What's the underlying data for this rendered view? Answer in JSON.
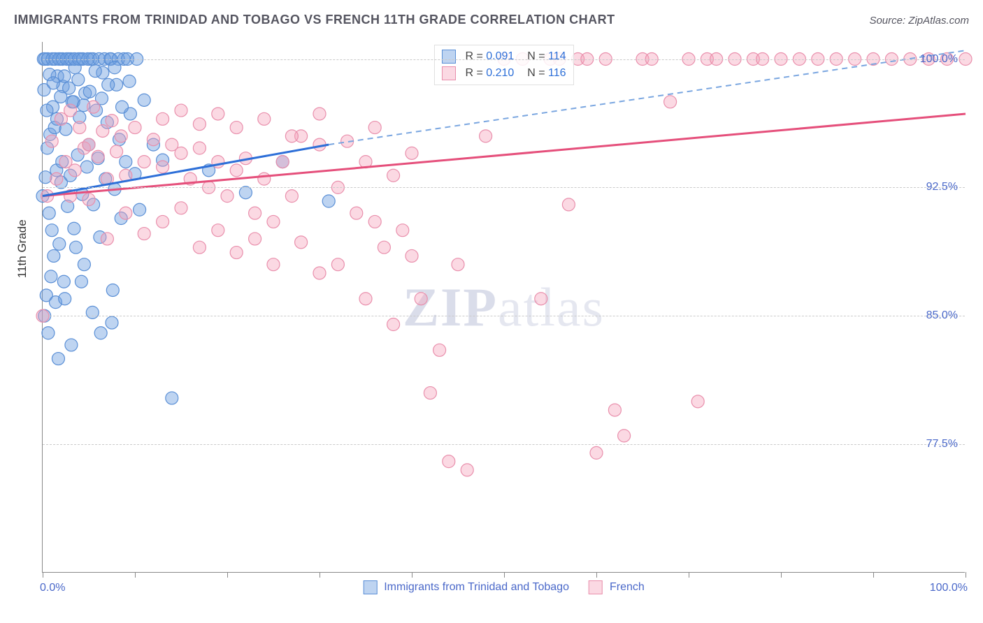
{
  "title": "IMMIGRANTS FROM TRINIDAD AND TOBAGO VS FRENCH 11TH GRADE CORRELATION CHART",
  "source": "Source: ZipAtlas.com",
  "watermark": {
    "prefix": "ZIP",
    "suffix": "atlas"
  },
  "yaxis_title": "11th Grade",
  "xlim": [
    0,
    100
  ],
  "ylim": [
    70,
    101
  ],
  "x_ticks": [
    0,
    10,
    20,
    30,
    40,
    50,
    60,
    70,
    80,
    90,
    100
  ],
  "y_gridlines": [
    77.5,
    85.0,
    92.5,
    100.0
  ],
  "y_tick_labels": [
    "77.5%",
    "85.0%",
    "92.5%",
    "100.0%"
  ],
  "x_axis_labels": {
    "left": "0.0%",
    "right": "100.0%"
  },
  "colors": {
    "blue_fill": "rgba(110,160,225,0.45)",
    "blue_stroke": "#5a8fd6",
    "pink_fill": "rgba(245,160,185,0.40)",
    "pink_stroke": "#e98fac",
    "blue_line": "#2d6fd8",
    "blue_dash": "#7aa6e0",
    "pink_line": "#e54f7b",
    "grid": "#cacaca",
    "axis": "#888888",
    "tick_text": "#4a68c9"
  },
  "marker_radius": 9,
  "series": [
    {
      "name": "Immigrants from Trinidad and Tobago",
      "key": "trinidad",
      "R": "0.091",
      "N": "114",
      "trend_solid": {
        "x1": 0,
        "y1": 92.0,
        "x2": 31,
        "y2": 95.0
      },
      "trend_dashed": {
        "x1": 31,
        "y1": 95.0,
        "x2": 100,
        "y2": 100.5
      },
      "points": [
        [
          0.0,
          92.0
        ],
        [
          0.3,
          93.1
        ],
        [
          0.5,
          94.8
        ],
        [
          0.7,
          91.0
        ],
        [
          0.8,
          95.6
        ],
        [
          1.0,
          90.0
        ],
        [
          1.1,
          97.2
        ],
        [
          1.2,
          88.5
        ],
        [
          1.3,
          96.0
        ],
        [
          1.5,
          93.5
        ],
        [
          1.6,
          99.0
        ],
        [
          1.8,
          89.2
        ],
        [
          1.9,
          100.0
        ],
        [
          2.0,
          92.8
        ],
        [
          2.1,
          94.0
        ],
        [
          2.2,
          98.4
        ],
        [
          2.3,
          87.0
        ],
        [
          2.5,
          95.9
        ],
        [
          2.7,
          91.4
        ],
        [
          2.8,
          100.0
        ],
        [
          3.0,
          93.2
        ],
        [
          3.2,
          97.5
        ],
        [
          3.4,
          90.1
        ],
        [
          3.5,
          99.5
        ],
        [
          3.6,
          89.0
        ],
        [
          3.8,
          94.4
        ],
        [
          4.0,
          96.6
        ],
        [
          4.1,
          100.0
        ],
        [
          4.3,
          92.1
        ],
        [
          4.5,
          88.0
        ],
        [
          4.6,
          98.0
        ],
        [
          4.8,
          93.7
        ],
        [
          5.0,
          95.0
        ],
        [
          5.2,
          100.0
        ],
        [
          5.5,
          91.5
        ],
        [
          5.8,
          97.0
        ],
        [
          6.0,
          94.2
        ],
        [
          6.2,
          89.6
        ],
        [
          6.5,
          99.2
        ],
        [
          6.8,
          93.0
        ],
        [
          7.0,
          96.3
        ],
        [
          7.3,
          100.0
        ],
        [
          7.5,
          84.6
        ],
        [
          7.8,
          92.4
        ],
        [
          8.0,
          98.5
        ],
        [
          8.3,
          95.3
        ],
        [
          8.5,
          90.7
        ],
        [
          8.8,
          100.0
        ],
        [
          9.0,
          94.0
        ],
        [
          9.5,
          96.8
        ],
        [
          10.0,
          93.3
        ],
        [
          10.5,
          91.2
        ],
        [
          11.0,
          97.6
        ],
        [
          12.0,
          95.0
        ],
        [
          13.0,
          94.1
        ],
        [
          14.0,
          80.2
        ],
        [
          18.0,
          93.5
        ],
        [
          22.0,
          92.2
        ],
        [
          26.0,
          94.0
        ],
        [
          31.0,
          91.7
        ],
        [
          0.2,
          85.0
        ],
        [
          0.4,
          86.2
        ],
        [
          0.6,
          84.0
        ],
        [
          0.9,
          87.3
        ],
        [
          1.4,
          85.8
        ],
        [
          1.7,
          82.5
        ],
        [
          2.4,
          86.0
        ],
        [
          3.1,
          83.3
        ],
        [
          4.2,
          87.0
        ],
        [
          5.4,
          85.2
        ],
        [
          6.3,
          84.0
        ],
        [
          7.6,
          86.5
        ],
        [
          0.1,
          100.0
        ],
        [
          0.25,
          100.0
        ],
        [
          0.55,
          100.0
        ],
        [
          1.05,
          100.0
        ],
        [
          1.35,
          100.0
        ],
        [
          1.75,
          100.0
        ],
        [
          2.15,
          100.0
        ],
        [
          2.6,
          100.0
        ],
        [
          3.05,
          100.0
        ],
        [
          3.45,
          100.0
        ],
        [
          3.9,
          100.0
        ],
        [
          4.35,
          100.0
        ],
        [
          4.9,
          100.0
        ],
        [
          5.45,
          100.0
        ],
        [
          6.1,
          100.0
        ],
        [
          6.7,
          100.0
        ],
        [
          7.4,
          100.0
        ],
        [
          8.2,
          100.0
        ],
        [
          9.2,
          100.0
        ],
        [
          10.2,
          100.0
        ],
        [
          0.15,
          98.2
        ],
        [
          0.45,
          97.0
        ],
        [
          0.75,
          99.1
        ],
        [
          1.15,
          98.6
        ],
        [
          1.55,
          96.5
        ],
        [
          1.95,
          97.8
        ],
        [
          2.35,
          99.0
        ],
        [
          2.85,
          98.3
        ],
        [
          3.35,
          97.5
        ],
        [
          3.85,
          98.8
        ],
        [
          4.45,
          97.3
        ],
        [
          5.1,
          98.1
        ],
        [
          5.7,
          99.3
        ],
        [
          6.4,
          97.7
        ],
        [
          7.1,
          98.5
        ],
        [
          7.8,
          99.5
        ],
        [
          8.6,
          97.2
        ],
        [
          9.4,
          98.7
        ]
      ]
    },
    {
      "name": "French",
      "key": "french",
      "R": "0.210",
      "N": "116",
      "trend_solid": {
        "x1": 0,
        "y1": 92.0,
        "x2": 100,
        "y2": 96.8
      },
      "points": [
        [
          0.0,
          85.0
        ],
        [
          0.5,
          92.0
        ],
        [
          1.0,
          95.2
        ],
        [
          1.5,
          93.0
        ],
        [
          2.0,
          96.5
        ],
        [
          2.5,
          94.0
        ],
        [
          3.0,
          97.0
        ],
        [
          3.5,
          93.5
        ],
        [
          4.0,
          96.0
        ],
        [
          4.5,
          94.8
        ],
        [
          5.0,
          95.0
        ],
        [
          5.5,
          97.2
        ],
        [
          6.0,
          94.3
        ],
        [
          6.5,
          95.8
        ],
        [
          7.0,
          93.0
        ],
        [
          7.5,
          96.4
        ],
        [
          8.0,
          94.6
        ],
        [
          8.5,
          95.5
        ],
        [
          9.0,
          93.2
        ],
        [
          10.0,
          96.0
        ],
        [
          11.0,
          94.0
        ],
        [
          12.0,
          95.3
        ],
        [
          13.0,
          93.7
        ],
        [
          14.0,
          95.0
        ],
        [
          15.0,
          94.5
        ],
        [
          16.0,
          93.0
        ],
        [
          17.0,
          94.8
        ],
        [
          18.0,
          92.5
        ],
        [
          19.0,
          94.0
        ],
        [
          20.0,
          92.0
        ],
        [
          21.0,
          93.5
        ],
        [
          22.0,
          94.2
        ],
        [
          23.0,
          91.0
        ],
        [
          24.0,
          93.0
        ],
        [
          25.0,
          90.5
        ],
        [
          26.0,
          94.0
        ],
        [
          27.0,
          92.0
        ],
        [
          28.0,
          95.5
        ],
        [
          30.0,
          95.0
        ],
        [
          32.0,
          88.0
        ],
        [
          34.0,
          91.0
        ],
        [
          35.0,
          86.0
        ],
        [
          36.0,
          90.5
        ],
        [
          37.0,
          89.0
        ],
        [
          38.0,
          84.5
        ],
        [
          39.0,
          90.0
        ],
        [
          40.0,
          88.5
        ],
        [
          41.0,
          86.0
        ],
        [
          42.0,
          80.5
        ],
        [
          43.0,
          83.0
        ],
        [
          44.0,
          76.5
        ],
        [
          45.0,
          88.0
        ],
        [
          46.0,
          76.0
        ],
        [
          48.0,
          95.5
        ],
        [
          50.0,
          100.0
        ],
        [
          52.0,
          100.0
        ],
        [
          54.0,
          86.0
        ],
        [
          55.0,
          100.0
        ],
        [
          56.0,
          100.0
        ],
        [
          57.0,
          91.5
        ],
        [
          58.0,
          100.0
        ],
        [
          59.0,
          100.0
        ],
        [
          60.0,
          77.0
        ],
        [
          61.0,
          100.0
        ],
        [
          62.0,
          79.5
        ],
        [
          63.0,
          78.0
        ],
        [
          65.0,
          100.0
        ],
        [
          66.0,
          100.0
        ],
        [
          68.0,
          97.5
        ],
        [
          70.0,
          100.0
        ],
        [
          71.0,
          80.0
        ],
        [
          72.0,
          100.0
        ],
        [
          73.0,
          100.0
        ],
        [
          75.0,
          100.0
        ],
        [
          77.0,
          100.0
        ],
        [
          78.0,
          100.0
        ],
        [
          80.0,
          100.0
        ],
        [
          82.0,
          100.0
        ],
        [
          84.0,
          100.0
        ],
        [
          86.0,
          100.0
        ],
        [
          88.0,
          100.0
        ],
        [
          90.0,
          100.0
        ],
        [
          92.0,
          100.0
        ],
        [
          94.0,
          100.0
        ],
        [
          96.0,
          100.0
        ],
        [
          98.0,
          100.0
        ],
        [
          100.0,
          100.0
        ],
        [
          3.0,
          92.0
        ],
        [
          5.0,
          91.8
        ],
        [
          7.0,
          89.5
        ],
        [
          9.0,
          91.0
        ],
        [
          11.0,
          89.8
        ],
        [
          13.0,
          90.5
        ],
        [
          15.0,
          91.3
        ],
        [
          17.0,
          89.0
        ],
        [
          19.0,
          90.0
        ],
        [
          21.0,
          88.7
        ],
        [
          23.0,
          89.5
        ],
        [
          25.0,
          88.0
        ],
        [
          28.0,
          89.3
        ],
        [
          30.0,
          87.5
        ],
        [
          32.0,
          92.5
        ],
        [
          35.0,
          94.0
        ],
        [
          38.0,
          93.2
        ],
        [
          40.0,
          94.5
        ],
        [
          13.0,
          96.5
        ],
        [
          15.0,
          97.0
        ],
        [
          17.0,
          96.2
        ],
        [
          19.0,
          96.8
        ],
        [
          21.0,
          96.0
        ],
        [
          24.0,
          96.5
        ],
        [
          27.0,
          95.5
        ],
        [
          30.0,
          96.8
        ],
        [
          33.0,
          95.2
        ],
        [
          36.0,
          96.0
        ]
      ]
    }
  ],
  "legend_bottom": [
    {
      "key": "trinidad",
      "label": "Immigrants from Trinidad and Tobago"
    },
    {
      "key": "french",
      "label": "French"
    }
  ]
}
